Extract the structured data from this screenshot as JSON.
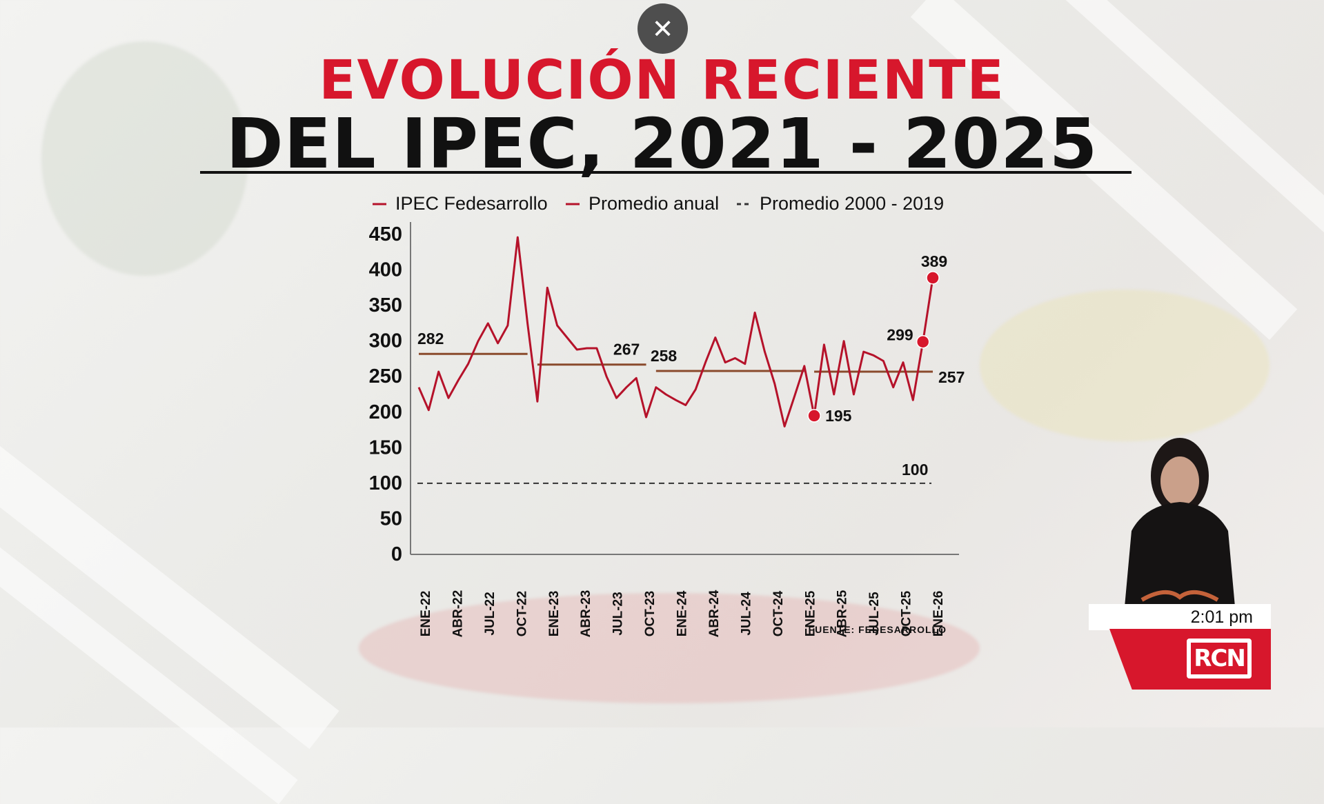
{
  "title_line1": "EVOLUCIÓN RECIENTE",
  "title_line2": "DEL IPEC, 2021 - 2025",
  "close_icon": "close-icon",
  "source": "FUENTE: FEDESARROLLO",
  "clock": "2:01 pm",
  "logo_text": "RCN",
  "colors": {
    "accent": "#d7172c",
    "line": "#b5122a",
    "avg": "#8a4a2c",
    "text": "#111111"
  },
  "chart_data": {
    "type": "line",
    "ylim": [
      0,
      450
    ],
    "yticks": [
      0,
      50,
      100,
      150,
      200,
      250,
      300,
      350,
      400,
      450
    ],
    "xtick_labels": [
      "ENE-22",
      "ABR-22",
      "JUL-22",
      "OCT-22",
      "ENE-23",
      "ABR-23",
      "JUL-23",
      "OCT-23",
      "ENE-24",
      "ABR-24",
      "JUL-24",
      "OCT-24",
      "ENE-25",
      "ABR-25",
      "JUL-25",
      "OCT-25",
      "ENE-26"
    ],
    "legend": [
      "IPEC Fedesarrollo",
      "Promedio anual",
      "Promedio 2000 - 2019"
    ],
    "legend_position": "top",
    "series": [
      {
        "name": "IPEC Fedesarrollo",
        "values": [
          235,
          203,
          257,
          220,
          245,
          268,
          300,
          325,
          297,
          322,
          446,
          325,
          215,
          375,
          322,
          305,
          288,
          290,
          290,
          250,
          220,
          235,
          248,
          193,
          235,
          225,
          217,
          210,
          232,
          270,
          305,
          270,
          276,
          268,
          340,
          285,
          240,
          180,
          222,
          265,
          195,
          295,
          225,
          300,
          225,
          285,
          280,
          272,
          235,
          270,
          217,
          299,
          389
        ]
      }
    ],
    "annual_averages": [
      {
        "label": "282",
        "value": 282
      },
      {
        "label": "267",
        "value": 267
      },
      {
        "label": "258",
        "value": 258
      },
      {
        "label": "257",
        "value": 257
      }
    ],
    "reference_line": {
      "label": "100",
      "value": 100
    },
    "highlighted_points": [
      {
        "label": "195",
        "value": 195
      },
      {
        "label": "299",
        "value": 299
      },
      {
        "label": "389",
        "value": 389
      }
    ],
    "grid": false
  }
}
